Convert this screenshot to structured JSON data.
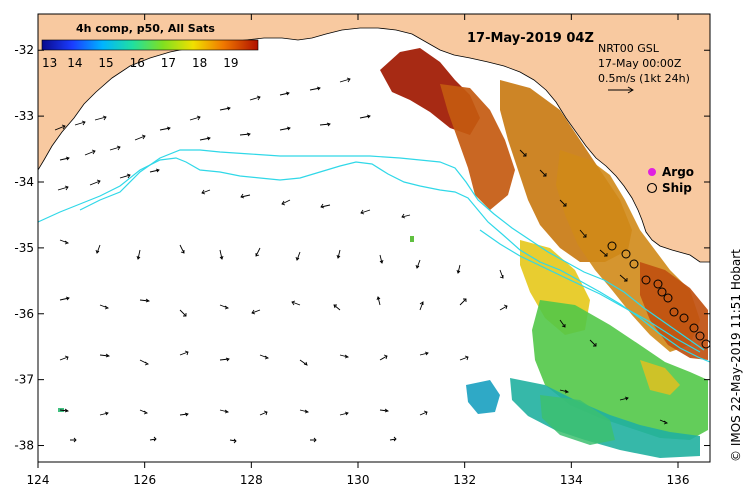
{
  "title": "17-May-2019 04Z",
  "colorbar": {
    "title": "4h comp, p50, All Sats",
    "ticks": [
      "13",
      "14",
      "15",
      "16",
      "17",
      "18",
      "19"
    ]
  },
  "info": {
    "line1": "NRT00 GSL",
    "line2": "17-May 00:00Z",
    "line3": "0.5m/s (1kt 24h)"
  },
  "legend": {
    "argo": "Argo",
    "ship": "Ship"
  },
  "credit": "© IMOS 22-May-2019 11:51 Hobart",
  "axes": {
    "x_ticks": [
      "124",
      "126",
      "128",
      "130",
      "132",
      "134",
      "136"
    ],
    "y_ticks": [
      "-32",
      "-33",
      "-34",
      "-35",
      "-36",
      "-37",
      "-38"
    ]
  },
  "colors": {
    "land": "#f8c9a0",
    "isobath": "#30d8e8",
    "argo": "#e020e0"
  }
}
